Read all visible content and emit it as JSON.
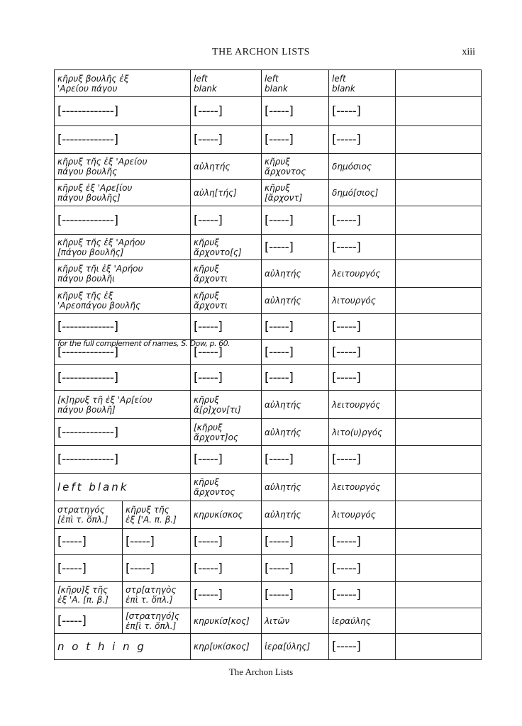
{
  "header": {
    "title": "THE ARCHON LISTS",
    "page_number": "xiii"
  },
  "caption": "The Archon Lists",
  "table": {
    "note": "for the full complement of names, S. Dow, p. 60.",
    "rows": [
      {
        "cells": [
          "κῆρυξ βουλῆς ἐξ\n'Αρείου πάγου",
          "left\nblank",
          "left\nblank",
          "left\nblank",
          ""
        ]
      },
      {
        "cells": [
          "[-------------]",
          "[-----]",
          "[-----]",
          "[-----]",
          ""
        ]
      },
      {
        "cells": [
          "[-------------]",
          "[-----]",
          "[-----]",
          "[-----]",
          ""
        ]
      },
      {
        "cells": [
          "κῆρυξ τῆς ἐξ 'Αρείου\nπάγου βουλῆς",
          "αὐλητής",
          "κῆρυξ\nἄρχοντος",
          "δημόσιος",
          ""
        ]
      },
      {
        "cells": [
          "κῆρυξ ἐξ 'Αρε[ίου\nπάγου βουλῆς]",
          "αὐλη[τής]",
          "κῆρυξ\n[ἄρχοντ]",
          "δημό[σιος]",
          ""
        ]
      },
      {
        "cells": [
          "[-------------]",
          "[-----]",
          "[-----]",
          "[-----]",
          ""
        ]
      },
      {
        "cells": [
          "κῆρυξ τῆς ἐξ 'Αρήου\n[πάγου βουλῆς]",
          "κῆρυξ\nἄρχοντο[ς]",
          "[-----]",
          "[-----]",
          ""
        ]
      },
      {
        "cells": [
          "κῆρυξ τῆι ἐξ 'Αρήου\nπάγου βουλῆι",
          "κῆρυξ\nἄρχοντι",
          "αὐλητής",
          "λειτουργός",
          ""
        ]
      },
      {
        "cells": [
          "κῆρυξ τῆς ἐξ\n'Αρεοπάγου βουλῆς",
          "κῆρυξ\nἄρχοντι",
          "αὐλητής",
          "λιτουργός",
          ""
        ]
      },
      {
        "cells": [
          "[-------------]",
          "[-----]",
          "[-----]",
          "[-----]",
          ""
        ]
      },
      {
        "cells": [
          "[-------------]",
          "[-----]",
          "[-----]",
          "[-----]",
          ""
        ],
        "has_note": true
      },
      {
        "cells": [
          "[-------------]",
          "[-----]",
          "[-----]",
          "[-----]",
          ""
        ]
      },
      {
        "cells": [
          "[κ]ηρυξ τῆ ἐξ 'Αρ[είου\nπάγου βουλῆ]",
          "κῆρυξ\nἄ[ρ]χον[τι]",
          "αὐλητής",
          "λειτουργός",
          ""
        ]
      },
      {
        "cells": [
          "[-------------]",
          "[κῆρυξ\nἄρχοντ]ος",
          "αὐλητής",
          "λιτο(υ)ργός",
          ""
        ]
      },
      {
        "cells": [
          "[-------------]",
          "[-----]",
          "[-----]",
          "[-----]",
          ""
        ]
      },
      {
        "cells": [
          "left  blank",
          "κῆρυξ\nἄρχοντος",
          "αὐλητής",
          "λειτουργός",
          ""
        ]
      },
      {
        "split": true,
        "cells": [
          "στρατηγός\n[ἐπὶ τ. ὅπλ.]",
          "κῆρυξ τῆς\nἐξ ['Α. π. β.]",
          "κηρυκίσκος",
          "αὐλητής",
          "λιτουργός",
          ""
        ]
      },
      {
        "split": true,
        "cells": [
          "[-----]",
          "[-----]",
          "[-----]",
          "[-----]",
          "[-----]",
          ""
        ]
      },
      {
        "split": true,
        "cells": [
          "[-----]",
          "[-----]",
          "[-----]",
          "[-----]",
          "[-----]",
          ""
        ]
      },
      {
        "split": true,
        "cells": [
          "[κῆρυ]ξ τῆς\nἐξ 'Α. [π. β.]",
          "στρ[ατηγὸς\nἐπὶ τ. ὅπλ.]",
          "[-----]",
          "[-----]",
          "[-----]",
          ""
        ]
      },
      {
        "split": true,
        "cells": [
          "[-----]",
          "[στρατηγό]ς\nἐπ[ὶ τ. ὅπλ.]",
          "κηρυκίσ[κος]",
          "λιτῶν",
          "ἱεραύλης",
          ""
        ]
      },
      {
        "cells": [
          "n o t h i n g",
          "κηρ[υκίσκος]",
          "ἱερα[ύλης]",
          "[-----]",
          ""
        ]
      }
    ]
  }
}
